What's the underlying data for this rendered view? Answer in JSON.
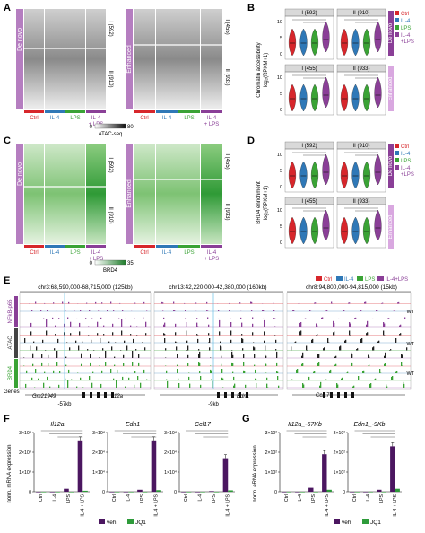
{
  "panels": {
    "A": {
      "letter": "A",
      "group_de_novo": "De novo",
      "group_enhanced": "Enhanced",
      "cluster_I_denovo": "I (592)",
      "cluster_II_denovo": "II (910)",
      "cluster_I_enh": "I (455)",
      "cluster_II_enh": "II (933)",
      "conditions": [
        "Ctrl",
        "IL-4",
        "LPS",
        "IL-4",
        "+ LPS"
      ],
      "scale_min": "0",
      "scale_max": "80",
      "scale_label": "ATAC-seq"
    },
    "B": {
      "letter": "B",
      "ylabel_line1": "Chromatin accessibility",
      "ylabel_line2": "log₂(RPKM+1)",
      "facets": [
        "I (592)",
        "II (910)",
        "I (455)",
        "II (933)"
      ],
      "yticks": [
        "10",
        "5",
        "0"
      ],
      "side_denovo": "De novo",
      "side_enhanced": "Enhanced",
      "legend": [
        "Ctrl",
        "IL-4",
        "LPS",
        "IL-4",
        "+LPS"
      ],
      "sig": "*"
    },
    "C": {
      "letter": "C",
      "group_de_novo": "De novo",
      "group_enhanced": "Enhanced",
      "cluster_I_denovo": "I (592)",
      "cluster_II_denovo": "II (910)",
      "cluster_I_enh": "I (455)",
      "cluster_II_enh": "II (933)",
      "conditions": [
        "Ctrl",
        "IL-4",
        "LPS",
        "IL-4",
        "+ LPS"
      ],
      "scale_min": "0",
      "scale_max": "35",
      "scale_label": "BRD4"
    },
    "D": {
      "letter": "D",
      "ylabel_line1": "BRD4 enrichment",
      "ylabel_line2": "log₂(RPKM+1)",
      "facets": [
        "I (592)",
        "II (910)",
        "I (455)",
        "II (933)"
      ],
      "yticks": [
        "10",
        "5",
        "0"
      ],
      "side_denovo": "De novo",
      "side_enhanced": "Enhanced",
      "legend": [
        "Ctrl",
        "IL-4",
        "LPS",
        "IL-4",
        "+LPS"
      ]
    },
    "E": {
      "letter": "E",
      "loci": [
        "chr3:68,590,000-68,715,000 (125kb)",
        "chr13:42,220,000-42,380,000 (160kb)",
        "chr8:94,800,000-94,815,000 (15kb)"
      ],
      "legend": [
        "Ctrl",
        "IL-4",
        "LPS",
        "IL-4+LPS"
      ],
      "track_labels": [
        "NFkB-p65",
        "ATAC",
        "BRD4"
      ],
      "genes_label": "Genes",
      "genes": [
        "Gm21949",
        "Il12a",
        "Edn1",
        "Ccl17"
      ],
      "offsets": [
        "-57kb",
        "-9kb"
      ],
      "wt_label": "WT"
    },
    "F": {
      "letter": "F",
      "ylabel": "norm. mRNA expression",
      "genes": [
        "Il12a",
        "Edn1",
        "Ccl17"
      ],
      "categories": [
        "Ctrl",
        "IL-4",
        "LPS",
        "IL-4 + LPS"
      ],
      "yaxes": [
        {
          "top": "3×10⁴",
          "mid": "2×10⁴",
          "low": "1×10⁴",
          "zero": "0"
        },
        {
          "top": "3×10⁴",
          "mid": "2×10⁴",
          "low": "1×10⁴",
          "zero": "0"
        },
        {
          "top": "3×10⁴",
          "mid": "2×10⁴",
          "low": "1×10⁴",
          "zero": "0"
        }
      ],
      "legend": [
        "veh",
        "JQ1"
      ]
    },
    "G": {
      "letter": "G",
      "ylabel": "norm. eRNA expression",
      "genes": [
        "Il12a_-57Kb",
        "Edn1_-9Kb"
      ],
      "categories": [
        "Ctrl",
        "IL-4",
        "LPS",
        "IL-4 + LPS"
      ],
      "yaxes": [
        {
          "top": "3×10²",
          "mid": "2×10²",
          "low": "1×10²",
          "zero": "0"
        },
        {
          "top": "3×10²",
          "mid": "2×10²",
          "low": "1×10²",
          "zero": "0"
        }
      ],
      "legend": [
        "veh",
        "JQ1"
      ]
    }
  },
  "colors": {
    "ctrl": "#d7262b",
    "il4": "#2f78b7",
    "lps": "#3aa335",
    "il4lps": "#8a3f97",
    "purple_side": "#b57ec0",
    "green_heat": "#2e9b3a",
    "veh": "#4b1660",
    "jq1": "#2e9b3a"
  },
  "chart_data": [
    {
      "type": "bar",
      "title": "Il12a",
      "ylabel": "norm. mRNA expression",
      "categories": [
        "Ctrl",
        "IL-4",
        "LPS",
        "IL-4 + LPS"
      ],
      "ylim": [
        0,
        30000
      ],
      "series": [
        {
          "name": "veh",
          "values": [
            0,
            0,
            1500,
            26000
          ]
        },
        {
          "name": "JQ1",
          "values": [
            0,
            0,
            0,
            500
          ]
        }
      ]
    },
    {
      "type": "bar",
      "title": "Edn1",
      "ylabel": "norm. mRNA expression",
      "categories": [
        "Ctrl",
        "IL-4",
        "LPS",
        "IL-4 + LPS"
      ],
      "ylim": [
        0,
        30000
      ],
      "series": [
        {
          "name": "veh",
          "values": [
            0,
            0,
            1000,
            26000
          ]
        },
        {
          "name": "JQ1",
          "values": [
            0,
            0,
            0,
            800
          ]
        }
      ]
    },
    {
      "type": "bar",
      "title": "Ccl17",
      "ylabel": "norm. mRNA expression",
      "categories": [
        "Ctrl",
        "IL-4",
        "LPS",
        "IL-4 + LPS"
      ],
      "ylim": [
        0,
        30000
      ],
      "series": [
        {
          "name": "veh",
          "values": [
            0,
            0,
            300,
            17000
          ]
        },
        {
          "name": "JQ1",
          "values": [
            0,
            0,
            0,
            700
          ]
        }
      ]
    },
    {
      "type": "bar",
      "title": "Il12a_-57Kb",
      "ylabel": "norm. eRNA expression",
      "categories": [
        "Ctrl",
        "IL-4",
        "LPS",
        "IL-4 + LPS"
      ],
      "ylim": [
        0,
        300
      ],
      "series": [
        {
          "name": "veh",
          "values": [
            0,
            0,
            20,
            190
          ]
        },
        {
          "name": "JQ1",
          "values": [
            0,
            0,
            0,
            10
          ]
        }
      ]
    },
    {
      "type": "bar",
      "title": "Edn1_-9Kb",
      "ylabel": "norm. eRNA expression",
      "categories": [
        "Ctrl",
        "IL-4",
        "LPS",
        "IL-4 + LPS"
      ],
      "ylim": [
        0,
        300
      ],
      "series": [
        {
          "name": "veh",
          "values": [
            0,
            0,
            10,
            230
          ]
        },
        {
          "name": "JQ1",
          "values": [
            0,
            0,
            0,
            15
          ]
        }
      ]
    }
  ]
}
